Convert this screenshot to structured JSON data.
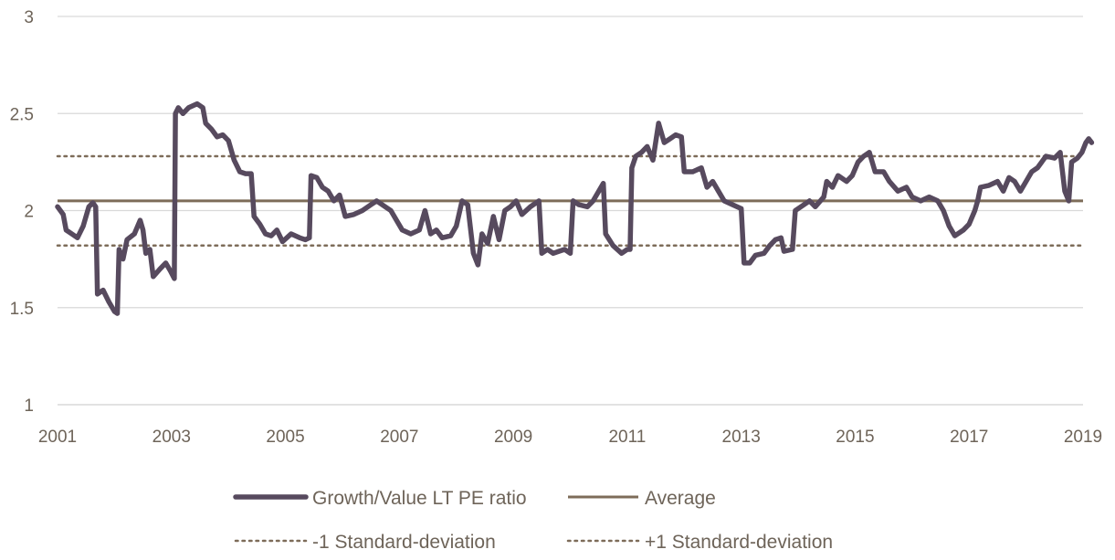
{
  "chart_data": {
    "type": "line",
    "title": "",
    "xlabel": "",
    "ylabel": "",
    "xlim": [
      2001,
      2019
    ],
    "ylim": [
      1,
      3
    ],
    "x_ticks": [
      "2001",
      "2003",
      "2005",
      "2007",
      "2009",
      "2011",
      "2013",
      "2015",
      "2017",
      "2019"
    ],
    "y_ticks": [
      "1",
      "1.5",
      "2",
      "2.5",
      "3"
    ],
    "grid": "horizontal",
    "legend_position": "bottom",
    "series": [
      {
        "name": "Growth/Value LT PE ratio",
        "style": "thick-solid",
        "color": "#574a5e",
        "points": [
          [
            2001.0,
            2.02
          ],
          [
            2001.1,
            1.98
          ],
          [
            2001.15,
            1.9
          ],
          [
            2001.25,
            1.88
          ],
          [
            2001.35,
            1.86
          ],
          [
            2001.45,
            1.92
          ],
          [
            2001.55,
            2.02
          ],
          [
            2001.62,
            2.04
          ],
          [
            2001.67,
            2.02
          ],
          [
            2001.7,
            1.57
          ],
          [
            2001.8,
            1.59
          ],
          [
            2001.9,
            1.53
          ],
          [
            2002.0,
            1.48
          ],
          [
            2002.05,
            1.47
          ],
          [
            2002.08,
            1.8
          ],
          [
            2002.15,
            1.75
          ],
          [
            2002.22,
            1.85
          ],
          [
            2002.35,
            1.88
          ],
          [
            2002.45,
            1.95
          ],
          [
            2002.5,
            1.9
          ],
          [
            2002.55,
            1.78
          ],
          [
            2002.62,
            1.8
          ],
          [
            2002.68,
            1.66
          ],
          [
            2002.8,
            1.7
          ],
          [
            2002.9,
            1.73
          ],
          [
            2002.98,
            1.69
          ],
          [
            2003.05,
            1.65
          ],
          [
            2003.07,
            2.5
          ],
          [
            2003.12,
            2.53
          ],
          [
            2003.2,
            2.5
          ],
          [
            2003.3,
            2.53
          ],
          [
            2003.45,
            2.55
          ],
          [
            2003.55,
            2.53
          ],
          [
            2003.6,
            2.45
          ],
          [
            2003.7,
            2.42
          ],
          [
            2003.8,
            2.38
          ],
          [
            2003.9,
            2.39
          ],
          [
            2004.0,
            2.36
          ],
          [
            2004.1,
            2.26
          ],
          [
            2004.2,
            2.2
          ],
          [
            2004.3,
            2.19
          ],
          [
            2004.4,
            2.19
          ],
          [
            2004.45,
            1.97
          ],
          [
            2004.55,
            1.93
          ],
          [
            2004.65,
            1.88
          ],
          [
            2004.75,
            1.87
          ],
          [
            2004.85,
            1.9
          ],
          [
            2004.95,
            1.84
          ],
          [
            2005.1,
            1.88
          ],
          [
            2005.25,
            1.86
          ],
          [
            2005.35,
            1.85
          ],
          [
            2005.42,
            1.86
          ],
          [
            2005.45,
            2.18
          ],
          [
            2005.55,
            2.17
          ],
          [
            2005.65,
            2.12
          ],
          [
            2005.75,
            2.1
          ],
          [
            2005.85,
            2.05
          ],
          [
            2005.95,
            2.08
          ],
          [
            2006.05,
            1.97
          ],
          [
            2006.2,
            1.98
          ],
          [
            2006.35,
            2.0
          ],
          [
            2006.5,
            2.03
          ],
          [
            2006.6,
            2.05
          ],
          [
            2006.7,
            2.03
          ],
          [
            2006.85,
            2.0
          ],
          [
            2006.95,
            1.95
          ],
          [
            2007.05,
            1.9
          ],
          [
            2007.2,
            1.88
          ],
          [
            2007.35,
            1.9
          ],
          [
            2007.45,
            2.0
          ],
          [
            2007.55,
            1.88
          ],
          [
            2007.65,
            1.9
          ],
          [
            2007.75,
            1.86
          ],
          [
            2007.9,
            1.87
          ],
          [
            2008.0,
            1.92
          ],
          [
            2008.1,
            2.05
          ],
          [
            2008.2,
            2.03
          ],
          [
            2008.3,
            1.78
          ],
          [
            2008.38,
            1.72
          ],
          [
            2008.45,
            1.88
          ],
          [
            2008.55,
            1.83
          ],
          [
            2008.65,
            1.97
          ],
          [
            2008.75,
            1.85
          ],
          [
            2008.85,
            2.0
          ],
          [
            2008.95,
            2.02
          ],
          [
            2009.05,
            2.05
          ],
          [
            2009.15,
            1.98
          ],
          [
            2009.3,
            2.02
          ],
          [
            2009.45,
            2.05
          ],
          [
            2009.5,
            1.78
          ],
          [
            2009.6,
            1.8
          ],
          [
            2009.7,
            1.78
          ],
          [
            2009.8,
            1.79
          ],
          [
            2009.9,
            1.8
          ],
          [
            2010.0,
            1.78
          ],
          [
            2010.05,
            2.05
          ],
          [
            2010.15,
            2.03
          ],
          [
            2010.3,
            2.02
          ],
          [
            2010.4,
            2.05
          ],
          [
            2010.5,
            2.1
          ],
          [
            2010.58,
            2.14
          ],
          [
            2010.62,
            1.88
          ],
          [
            2010.75,
            1.82
          ],
          [
            2010.9,
            1.78
          ],
          [
            2011.0,
            1.8
          ],
          [
            2011.05,
            1.8
          ],
          [
            2011.08,
            2.22
          ],
          [
            2011.15,
            2.28
          ],
          [
            2011.25,
            2.3
          ],
          [
            2011.35,
            2.33
          ],
          [
            2011.45,
            2.26
          ],
          [
            2011.55,
            2.45
          ],
          [
            2011.65,
            2.35
          ],
          [
            2011.75,
            2.37
          ],
          [
            2011.85,
            2.39
          ],
          [
            2011.95,
            2.38
          ],
          [
            2012.0,
            2.2
          ],
          [
            2012.15,
            2.2
          ],
          [
            2012.3,
            2.22
          ],
          [
            2012.4,
            2.12
          ],
          [
            2012.5,
            2.15
          ],
          [
            2012.6,
            2.1
          ],
          [
            2012.7,
            2.05
          ],
          [
            2012.85,
            2.03
          ],
          [
            2013.0,
            2.01
          ],
          [
            2013.05,
            1.73
          ],
          [
            2013.15,
            1.73
          ],
          [
            2013.25,
            1.77
          ],
          [
            2013.4,
            1.78
          ],
          [
            2013.5,
            1.82
          ],
          [
            2013.6,
            1.85
          ],
          [
            2013.7,
            1.86
          ],
          [
            2013.75,
            1.79
          ],
          [
            2013.9,
            1.8
          ],
          [
            2013.95,
            2.0
          ],
          [
            2014.1,
            2.03
          ],
          [
            2014.2,
            2.05
          ],
          [
            2014.3,
            2.02
          ],
          [
            2014.45,
            2.07
          ],
          [
            2014.5,
            2.15
          ],
          [
            2014.6,
            2.12
          ],
          [
            2014.7,
            2.18
          ],
          [
            2014.85,
            2.15
          ],
          [
            2014.95,
            2.18
          ],
          [
            2015.05,
            2.25
          ],
          [
            2015.15,
            2.28
          ],
          [
            2015.25,
            2.3
          ],
          [
            2015.35,
            2.2
          ],
          [
            2015.5,
            2.2
          ],
          [
            2015.6,
            2.15
          ],
          [
            2015.75,
            2.1
          ],
          [
            2015.9,
            2.12
          ],
          [
            2016.0,
            2.07
          ],
          [
            2016.15,
            2.05
          ],
          [
            2016.3,
            2.07
          ],
          [
            2016.45,
            2.05
          ],
          [
            2016.55,
            2.0
          ],
          [
            2016.65,
            1.92
          ],
          [
            2016.75,
            1.87
          ],
          [
            2016.9,
            1.9
          ],
          [
            2017.0,
            1.93
          ],
          [
            2017.1,
            2.0
          ],
          [
            2017.15,
            2.05
          ],
          [
            2017.2,
            2.12
          ],
          [
            2017.35,
            2.13
          ],
          [
            2017.5,
            2.15
          ],
          [
            2017.6,
            2.1
          ],
          [
            2017.7,
            2.17
          ],
          [
            2017.8,
            2.15
          ],
          [
            2017.9,
            2.1
          ],
          [
            2018.0,
            2.15
          ],
          [
            2018.1,
            2.2
          ],
          [
            2018.2,
            2.22
          ],
          [
            2018.35,
            2.28
          ],
          [
            2018.5,
            2.27
          ],
          [
            2018.6,
            2.3
          ],
          [
            2018.68,
            2.1
          ],
          [
            2018.75,
            2.05
          ],
          [
            2018.8,
            2.25
          ],
          [
            2018.9,
            2.27
          ],
          [
            2018.98,
            2.3
          ],
          [
            2019.05,
            2.35
          ],
          [
            2019.1,
            2.37
          ],
          [
            2019.15,
            2.35
          ]
        ]
      },
      {
        "name": "Average",
        "style": "solid",
        "color": "#7d6c59",
        "value": 2.05
      },
      {
        "name": "-1 Standard-deviation",
        "style": "dotted",
        "color": "#7d6c59",
        "value": 1.82
      },
      {
        "name": "+1 Standard-deviation",
        "style": "dotted",
        "color": "#7d6c59",
        "value": 2.28
      }
    ]
  },
  "colors": {
    "ratio_line": "#574a5e",
    "reference_lines": "#7d6c59",
    "grid": "#d9d9d9",
    "text": "#6e6459"
  }
}
